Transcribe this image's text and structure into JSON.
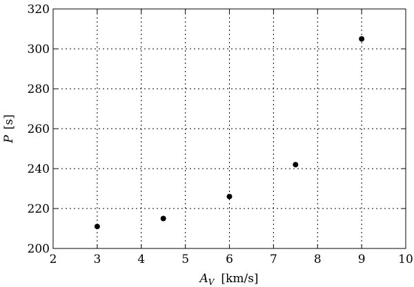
{
  "chart_data": {
    "type": "scatter",
    "x": [
      3,
      4.5,
      6,
      7.5,
      9
    ],
    "values": [
      211,
      215,
      226,
      242,
      305
    ],
    "color": "#000000",
    "xlim": [
      2,
      10
    ],
    "xticks": [
      2,
      3,
      4,
      5,
      6,
      7,
      8,
      9,
      10
    ],
    "ylim": [
      200,
      320
    ],
    "yticks": [
      200,
      220,
      240,
      260,
      280,
      300,
      320
    ],
    "grid": true,
    "xlabel": {
      "symbol": "A",
      "subscript": "V",
      "unit": "[km/s]"
    },
    "ylabel": {
      "symbol": "P",
      "unit": "[s]"
    }
  }
}
